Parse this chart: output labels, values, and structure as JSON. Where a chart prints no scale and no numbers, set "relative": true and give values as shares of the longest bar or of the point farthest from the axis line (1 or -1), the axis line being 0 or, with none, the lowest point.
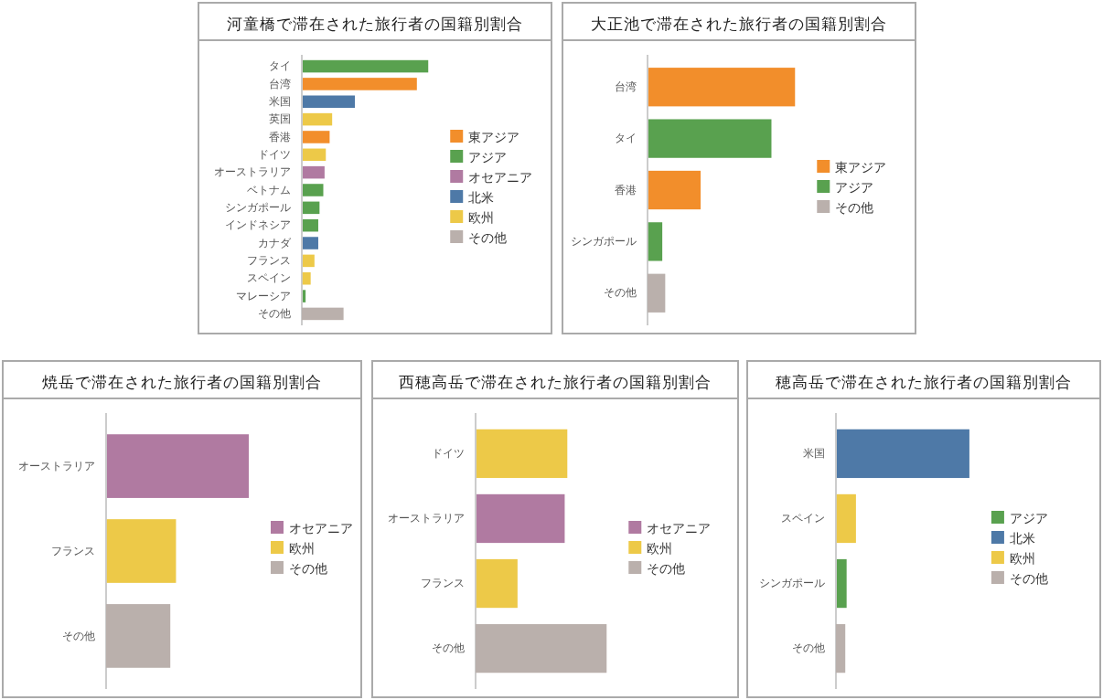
{
  "chart_data": [
    {
      "type": "bar",
      "title": "河童橋で滞在された旅行者の国籍別割合",
      "orientation": "horizontal",
      "relative": true,
      "legend": "right",
      "categories": [
        "タイ",
        "台湾",
        "米国",
        "英国",
        "香港",
        "ドイツ",
        "オーストラリア",
        "ベトナム",
        "シンガポール",
        "インドネシア",
        "カナダ",
        "フランス",
        "スペイン",
        "マレーシア",
        "その他"
      ],
      "series": [
        {
          "name": "東アジア",
          "color": "#f28e2b",
          "values": [
            null,
            0.91,
            null,
            null,
            0.22,
            null,
            null,
            null,
            null,
            null,
            null,
            null,
            null,
            null,
            null
          ]
        },
        {
          "name": "アジア",
          "color": "#59a14f",
          "values": [
            1,
            null,
            null,
            null,
            null,
            null,
            null,
            0.17,
            0.14,
            0.13,
            null,
            null,
            null,
            0.03,
            null
          ]
        },
        {
          "name": "オセアニア",
          "color": "#b07aa1",
          "values": [
            null,
            null,
            null,
            null,
            null,
            null,
            0.18,
            null,
            null,
            null,
            null,
            null,
            null,
            null,
            null
          ]
        },
        {
          "name": "北米",
          "color": "#4e79a7",
          "values": [
            null,
            null,
            0.42,
            null,
            null,
            null,
            null,
            null,
            null,
            null,
            0.13,
            null,
            null,
            null,
            null
          ]
        },
        {
          "name": "欧州",
          "color": "#edc948",
          "values": [
            null,
            null,
            null,
            0.24,
            null,
            0.19,
            null,
            null,
            null,
            null,
            null,
            0.1,
            0.07,
            null,
            null
          ]
        },
        {
          "name": "その他",
          "color": "#bab0ac",
          "values": [
            null,
            null,
            null,
            null,
            null,
            null,
            null,
            null,
            null,
            null,
            null,
            null,
            null,
            null,
            0.33
          ]
        }
      ]
    },
    {
      "type": "bar",
      "title": "大正池で滞在された旅行者の国籍別割合",
      "orientation": "horizontal",
      "relative": true,
      "legend": "right",
      "categories": [
        "台湾",
        "タイ",
        "香港",
        "シンガポール",
        "その他"
      ],
      "series": [
        {
          "name": "東アジア",
          "color": "#f28e2b",
          "values": [
            1,
            null,
            0.36,
            null,
            null
          ]
        },
        {
          "name": "アジア",
          "color": "#59a14f",
          "values": [
            null,
            0.84,
            null,
            0.1,
            null
          ]
        },
        {
          "name": "その他",
          "color": "#bab0ac",
          "values": [
            null,
            null,
            null,
            null,
            0.12
          ]
        }
      ]
    },
    {
      "type": "bar",
      "title": "焼岳で滞在された旅行者の国籍別割合",
      "orientation": "horizontal",
      "relative": true,
      "legend": "right",
      "categories": [
        "オーストラリア",
        "フランス",
        "その他"
      ],
      "series": [
        {
          "name": "オセアニア",
          "color": "#b07aa1",
          "values": [
            1,
            null,
            null
          ]
        },
        {
          "name": "欧州",
          "color": "#edc948",
          "values": [
            null,
            0.49,
            null
          ]
        },
        {
          "name": "その他",
          "color": "#bab0ac",
          "values": [
            null,
            null,
            0.45
          ]
        }
      ]
    },
    {
      "type": "bar",
      "title": "西穂高岳で滞在された旅行者の国籍別割合",
      "orientation": "horizontal",
      "relative": true,
      "legend": "right",
      "categories": [
        "ドイツ",
        "オーストラリア",
        "フランス",
        "その他"
      ],
      "series": [
        {
          "name": "オセアニア",
          "color": "#b07aa1",
          "values": [
            null,
            0.68,
            null,
            null
          ]
        },
        {
          "name": "欧州",
          "color": "#edc948",
          "values": [
            0.7,
            null,
            0.32,
            null
          ]
        },
        {
          "name": "その他",
          "color": "#bab0ac",
          "values": [
            null,
            null,
            null,
            1
          ]
        }
      ]
    },
    {
      "type": "bar",
      "title": "穂高岳で滞在された旅行者の国籍別割合",
      "orientation": "horizontal",
      "relative": true,
      "legend": "right",
      "categories": [
        "米国",
        "スペイン",
        "シンガポール",
        "その他"
      ],
      "series": [
        {
          "name": "アジア",
          "color": "#59a14f",
          "values": [
            null,
            null,
            0.08,
            null
          ]
        },
        {
          "name": "北米",
          "color": "#4e79a7",
          "values": [
            1,
            null,
            null,
            null
          ]
        },
        {
          "name": "欧州",
          "color": "#edc948",
          "values": [
            null,
            0.15,
            null,
            null
          ]
        },
        {
          "name": "その他",
          "color": "#bab0ac",
          "values": [
            null,
            null,
            null,
            0.07
          ]
        }
      ]
    }
  ]
}
